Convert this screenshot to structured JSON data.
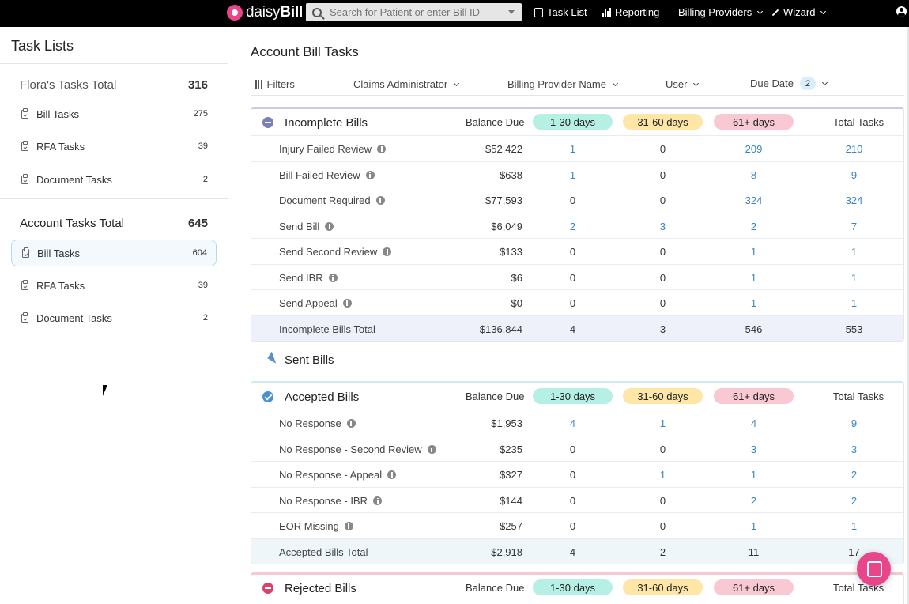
{
  "brand": {
    "name_light": "daisy",
    "name_bold": "Bill"
  },
  "search": {
    "placeholder": "Search for Patient or enter Bill ID"
  },
  "nav": {
    "task_list": "Task List",
    "reporting": "Reporting",
    "billing_providers": "Billing Providers",
    "wizard": "Wizard"
  },
  "sidebar": {
    "title": "Task Lists",
    "groups": [
      {
        "label": "Flora's Tasks Total",
        "count": "316",
        "items": [
          {
            "label": "Bill Tasks",
            "count": "275"
          },
          {
            "label": "RFA Tasks",
            "count": "39"
          },
          {
            "label": "Document Tasks",
            "count": "2"
          }
        ]
      },
      {
        "label": "Account Tasks Total",
        "count": "645",
        "items": [
          {
            "label": "Bill Tasks",
            "count": "604",
            "active": true
          },
          {
            "label": "RFA Tasks",
            "count": "39"
          },
          {
            "label": "Document Tasks",
            "count": "2"
          }
        ]
      }
    ]
  },
  "main": {
    "title": "Account Bill Tasks",
    "filters": {
      "label": "Filters",
      "claims_admin": "Claims Administrator",
      "billing_provider": "Billing Provider Name",
      "user": "User",
      "due_date": "Due Date",
      "due_date_count": "2"
    },
    "columns": {
      "balance": "Balance Due",
      "d1": "1-30 days",
      "d2": "31-60 days",
      "d3": "61+ days",
      "total": "Total Tasks"
    },
    "incomplete": {
      "title": "Incomplete Bills",
      "rows": [
        {
          "label": "Injury Failed Review",
          "balance": "$52,422",
          "d1": "1",
          "d2": "0",
          "d3": "209",
          "total": "210"
        },
        {
          "label": "Bill Failed Review",
          "balance": "$638",
          "d1": "1",
          "d2": "0",
          "d3": "8",
          "total": "9"
        },
        {
          "label": "Document Required",
          "balance": "$77,593",
          "d1": "0",
          "d2": "0",
          "d3": "324",
          "total": "324"
        },
        {
          "label": "Send Bill",
          "balance": "$6,049",
          "d1": "2",
          "d2": "3",
          "d3": "2",
          "total": "7"
        },
        {
          "label": "Send Second Review",
          "balance": "$133",
          "d1": "0",
          "d2": "0",
          "d3": "1",
          "total": "1"
        },
        {
          "label": "Send IBR",
          "balance": "$6",
          "d1": "0",
          "d2": "0",
          "d3": "1",
          "total": "1"
        },
        {
          "label": "Send Appeal",
          "balance": "$0",
          "d1": "0",
          "d2": "0",
          "d3": "1",
          "total": "1"
        }
      ],
      "total": {
        "label": "Incomplete Bills Total",
        "balance": "$136,844",
        "d1": "4",
        "d2": "3",
        "d3": "546",
        "total": "553"
      }
    },
    "sent": {
      "title": "Sent Bills"
    },
    "accepted": {
      "title": "Accepted Bills",
      "rows": [
        {
          "label": "No Response",
          "balance": "$1,953",
          "d1": "4",
          "d2": "1",
          "d3": "4",
          "total": "9"
        },
        {
          "label": "No Response - Second Review",
          "balance": "$235",
          "d1": "0",
          "d2": "0",
          "d3": "3",
          "total": "3"
        },
        {
          "label": "No Response - Appeal",
          "balance": "$327",
          "d1": "0",
          "d2": "1",
          "d3": "1",
          "total": "2"
        },
        {
          "label": "No Response - IBR",
          "balance": "$144",
          "d1": "0",
          "d2": "0",
          "d3": "2",
          "total": "2"
        },
        {
          "label": "EOR Missing",
          "balance": "$257",
          "d1": "0",
          "d2": "0",
          "d3": "1",
          "total": "1"
        }
      ],
      "total": {
        "label": "Accepted Bills Total",
        "balance": "$2,918",
        "d1": "4",
        "d2": "2",
        "d3": "11",
        "total": "17"
      }
    },
    "rejected": {
      "title": "Rejected Bills"
    }
  },
  "colors": {
    "brand_pink": "#e8458b",
    "link_blue": "#3a83c4",
    "pill_green": "#b6efe3",
    "pill_yellow": "#fde6a6",
    "pill_red": "#f9c9d3"
  }
}
